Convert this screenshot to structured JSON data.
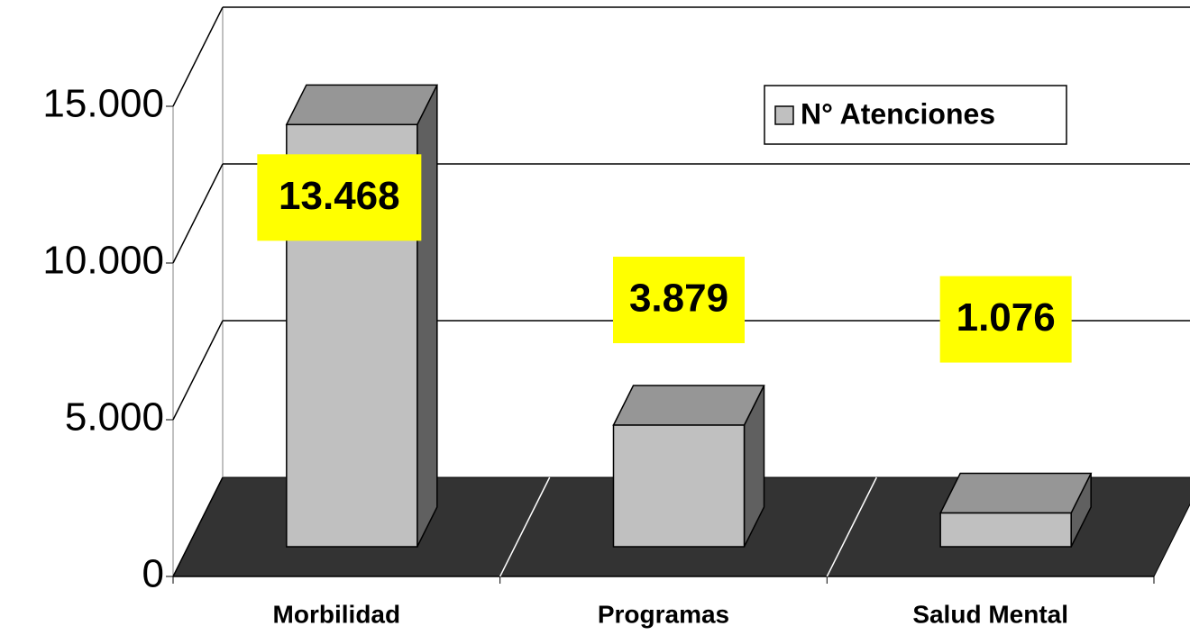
{
  "chart_data": {
    "type": "bar3d",
    "categories": [
      "Morbilidad",
      "Programas",
      "Salud Mental"
    ],
    "series": [
      {
        "name": "N° Atenciones",
        "color": "#c0c0c0",
        "values": [
          13468,
          3879,
          1076
        ],
        "value_labels": [
          "13.468",
          "3.879",
          "1.076"
        ]
      }
    ],
    "ylim": [
      0,
      15000
    ],
    "yticks": [
      0,
      {
        "value": 5000,
        "label": "5.000"
      },
      {
        "value": 10000,
        "label": "10.000"
      },
      {
        "value": 15000,
        "label": "15.000"
      }
    ],
    "grid": true,
    "legend": "top-right",
    "label_color": "#ffff00"
  }
}
